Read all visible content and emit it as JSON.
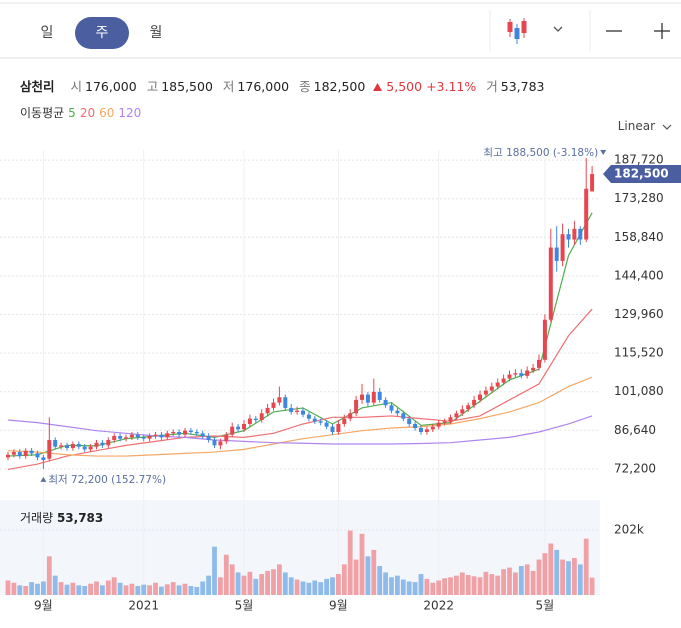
{
  "tabs": [
    "일",
    "주",
    "월"
  ],
  "header": {
    "name": "삼천리",
    "items": [
      {
        "label": "시",
        "value": "176,000"
      },
      {
        "label": "고",
        "value": "185,500"
      },
      {
        "label": "저",
        "value": "176,000"
      },
      {
        "label": "종",
        "value": "182,500"
      }
    ],
    "change": "5,500",
    "change_pct": "+3.11%",
    "volume": {
      "label": "거",
      "value": "53,783"
    }
  },
  "ma_title": "이동평균",
  "scale_mode": "Linear",
  "chart_data": {
    "type": "candlestick",
    "up_color": "#e8464f",
    "down_color": "#3d87e0",
    "ylim": [
      64300,
      191500
    ],
    "yticks": [
      {
        "value": 72200,
        "label": "72,200"
      },
      {
        "value": 86640,
        "label": "86,640"
      },
      {
        "value": 101080,
        "label": "101,080"
      },
      {
        "value": 115520,
        "label": "115,520"
      },
      {
        "value": 129960,
        "label": "129,960"
      },
      {
        "value": 144400,
        "label": "144,400"
      },
      {
        "value": 158840,
        "label": "158,840"
      },
      {
        "value": 173280,
        "label": "173,280"
      },
      {
        "value": 187720,
        "label": "187,720"
      }
    ],
    "grid": true,
    "xlabels": [
      {
        "index": 6,
        "label": "9월"
      },
      {
        "index": 23,
        "label": "2021"
      },
      {
        "index": 40,
        "label": "5월"
      },
      {
        "index": 56,
        "label": "9월"
      },
      {
        "index": 73,
        "label": "2022"
      },
      {
        "index": 91,
        "label": "5월"
      }
    ],
    "open": [
      76500,
      77500,
      78500,
      77000,
      79000,
      78000,
      76500,
      76000,
      83000,
      80500,
      81000,
      80000,
      81500,
      80500,
      79500,
      80500,
      82000,
      81000,
      83000,
      84500,
      83500,
      84000,
      85000,
      84000,
      83500,
      84500,
      85000,
      84000,
      85500,
      86000,
      85000,
      86500,
      86000,
      85500,
      84500,
      83000,
      81000,
      82500,
      85000,
      88000,
      87000,
      89000,
      91000,
      90500,
      93000,
      95000,
      97000,
      99000,
      95000,
      93500,
      94000,
      92500,
      91000,
      90000,
      89500,
      88000,
      86000,
      89000,
      91000,
      93000,
      98000,
      100000,
      97000,
      101000,
      98000,
      96000,
      94000,
      93000,
      91000,
      89000,
      87500,
      86000,
      87000,
      88000,
      89500,
      90000,
      91500,
      93000,
      94500,
      96000,
      98000,
      100000,
      101500,
      103000,
      104500,
      106000,
      107500,
      108000,
      107000,
      109000,
      110000,
      113000,
      128000,
      155000,
      150000,
      160000,
      158000,
      162000,
      158000,
      176000
    ],
    "high": [
      78500,
      79500,
      79500,
      80000,
      80000,
      79000,
      77500,
      91500,
      84000,
      82000,
      82000,
      82500,
      82500,
      81500,
      81500,
      83000,
      83000,
      84000,
      85500,
      85500,
      85000,
      86000,
      86000,
      85000,
      85500,
      86000,
      86000,
      86500,
      87000,
      87000,
      87500,
      87500,
      87000,
      86500,
      85500,
      84000,
      83500,
      86000,
      89500,
      89000,
      90500,
      92500,
      92000,
      94500,
      96500,
      98500,
      103000,
      100000,
      96500,
      95500,
      95000,
      93500,
      92000,
      91000,
      90500,
      89000,
      90500,
      92500,
      94500,
      99500,
      104000,
      101000,
      106000,
      102500,
      99000,
      97000,
      95000,
      94000,
      92000,
      90000,
      88500,
      88000,
      89000,
      90500,
      91000,
      92500,
      94000,
      96000,
      97000,
      99500,
      101500,
      103000,
      104500,
      106000,
      107500,
      109000,
      109500,
      109500,
      110500,
      111500,
      115000,
      130000,
      162000,
      163000,
      164000,
      162000,
      165000,
      163000,
      188500,
      185500
    ],
    "low": [
      75500,
      76500,
      76000,
      76000,
      77000,
      75500,
      72200,
      75000,
      79500,
      79500,
      79000,
      79000,
      79500,
      78500,
      78500,
      79500,
      80000,
      80000,
      82000,
      82500,
      82500,
      83000,
      83000,
      82500,
      82500,
      83500,
      83000,
      83000,
      84500,
      84000,
      84000,
      85000,
      84500,
      83500,
      82000,
      80000,
      79500,
      81500,
      84000,
      86000,
      86000,
      88000,
      89500,
      89500,
      92000,
      94000,
      96000,
      94000,
      92500,
      92500,
      91500,
      90000,
      89000,
      88500,
      87000,
      85000,
      85000,
      88000,
      90000,
      92000,
      96500,
      95500,
      96000,
      97000,
      95000,
      93000,
      92000,
      90000,
      88000,
      86500,
      85000,
      85000,
      86000,
      87000,
      88500,
      89000,
      90500,
      92000,
      93500,
      95000,
      97000,
      99000,
      100500,
      102000,
      103500,
      105000,
      106500,
      106000,
      106000,
      108000,
      109000,
      112000,
      127000,
      146000,
      148000,
      155000,
      156000,
      156000,
      157000,
      176000
    ],
    "close": [
      77500,
      78500,
      77000,
      79000,
      78000,
      76500,
      75500,
      83000,
      80500,
      81000,
      80000,
      81500,
      80500,
      79500,
      80500,
      82000,
      81000,
      83000,
      84500,
      83500,
      84000,
      85000,
      84000,
      83500,
      84500,
      85000,
      84000,
      85500,
      86000,
      85000,
      86500,
      86000,
      85500,
      84500,
      83000,
      81000,
      82500,
      85000,
      88000,
      87000,
      89000,
      91000,
      90500,
      93000,
      95000,
      97000,
      99000,
      95000,
      93500,
      94000,
      92500,
      91000,
      90000,
      89500,
      88000,
      86000,
      89000,
      91000,
      93000,
      98000,
      100000,
      97000,
      101000,
      98000,
      96000,
      94000,
      93000,
      91000,
      89000,
      87500,
      86000,
      87000,
      88000,
      89500,
      90000,
      91500,
      93000,
      94500,
      96000,
      98000,
      100000,
      101500,
      103000,
      104500,
      106000,
      107500,
      108000,
      107000,
      109000,
      110000,
      113000,
      128000,
      155000,
      150000,
      160000,
      158000,
      162000,
      158000,
      177000,
      182500
    ],
    "ma_index": [
      0,
      5,
      10,
      15,
      20,
      25,
      30,
      35,
      40,
      45,
      50,
      55,
      60,
      65,
      70,
      75,
      80,
      85,
      90,
      95,
      99
    ],
    "ma": [
      {
        "name": "5",
        "color": "#4fae4f",
        "values": [
          77000,
          77500,
          81000,
          80800,
          83500,
          84500,
          85500,
          84000,
          86500,
          93500,
          95000,
          89000,
          95000,
          97000,
          88500,
          89500,
          97500,
          105500,
          109500,
          152000,
          168000
        ]
      },
      {
        "name": "20",
        "color": "#ef6f72",
        "values": [
          72000,
          74000,
          77000,
          79000,
          81000,
          82500,
          84000,
          84500,
          84000,
          85500,
          89000,
          91500,
          91500,
          92000,
          91000,
          90000,
          92000,
          98000,
          104000,
          122000,
          132000
        ]
      },
      {
        "name": "60",
        "color": "#f4a866",
        "values": [
          79000,
          78500,
          77500,
          77000,
          77000,
          77500,
          78000,
          78500,
          79500,
          81500,
          83500,
          85000,
          86500,
          87500,
          88000,
          89000,
          91000,
          93500,
          97000,
          103000,
          106500
        ]
      },
      {
        "name": "120",
        "color": "#b084ee",
        "values": [
          90500,
          89500,
          88000,
          86500,
          85500,
          84500,
          84000,
          83000,
          82500,
          82000,
          81800,
          81500,
          81500,
          81500,
          81700,
          82000,
          83000,
          84000,
          86000,
          89000,
          92000
        ]
      }
    ],
    "current": {
      "value": 182500,
      "label": "182,500"
    },
    "high_note": {
      "index": 98,
      "value": 188500,
      "label": "최고 188,500 (-3.18%)"
    },
    "low_note": {
      "index": 6,
      "value": 72200,
      "label": "최저 72,200 (152.77%)"
    },
    "volume": {
      "title": "거래량",
      "value_label": "53,783",
      "ylim": [
        0,
        295000
      ],
      "yticks": [
        {
          "value": 202000,
          "label": "202k"
        }
      ],
      "values": [
        45000,
        38000,
        30000,
        28000,
        40000,
        35000,
        42000,
        120000,
        60000,
        40000,
        32000,
        38000,
        30000,
        28000,
        35000,
        42000,
        30000,
        45000,
        55000,
        38000,
        30000,
        35000,
        28000,
        32000,
        30000,
        38000,
        26000,
        33000,
        40000,
        30000,
        35000,
        28000,
        25000,
        42000,
        60000,
        150000,
        55000,
        125000,
        95000,
        70000,
        60000,
        72000,
        50000,
        65000,
        75000,
        80000,
        95000,
        70000,
        55000,
        48000,
        42000,
        38000,
        45000,
        40000,
        50000,
        55000,
        65000,
        95000,
        200000,
        110000,
        190000,
        120000,
        140000,
        90000,
        70000,
        55000,
        60000,
        48000,
        42000,
        40000,
        65000,
        50000,
        38000,
        45000,
        52000,
        55000,
        60000,
        70000,
        62000,
        58000,
        55000,
        72000,
        65000,
        60000,
        80000,
        85000,
        70000,
        90000,
        95000,
        75000,
        110000,
        130000,
        160000,
        140000,
        110000,
        105000,
        115000,
        95000,
        175000,
        53783
      ]
    }
  }
}
